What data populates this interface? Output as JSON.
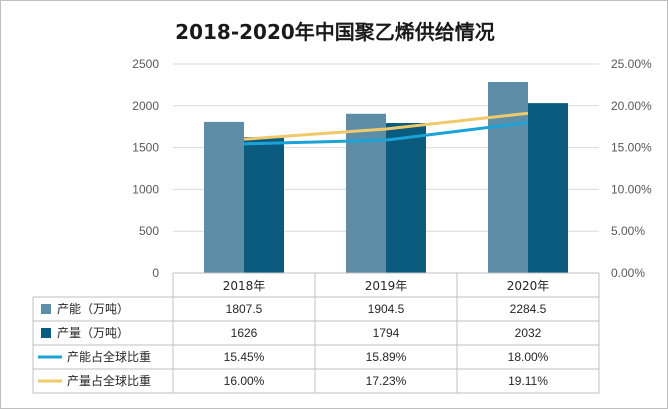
{
  "chart_data": {
    "type": "bar",
    "title": "2018-2020年中国聚乙烯供给情况",
    "categories": [
      "2018年",
      "2019年",
      "2020年"
    ],
    "series": [
      {
        "name": "产能（万吨）",
        "kind": "bar",
        "axis": "left",
        "values": [
          1807.5,
          1904.5,
          2284.5
        ],
        "labels": [
          "1807.5",
          "1904.5",
          "2284.5"
        ],
        "color": "#5e8da8"
      },
      {
        "name": "产量（万吨）",
        "kind": "bar",
        "axis": "left",
        "values": [
          1626,
          1794,
          2032
        ],
        "labels": [
          "1626",
          "1794",
          "2032"
        ],
        "color": "#0b5b7e"
      },
      {
        "name": "产能占全球比重",
        "kind": "line",
        "axis": "right",
        "values": [
          15.45,
          15.89,
          18.0
        ],
        "labels": [
          "15.45%",
          "15.89%",
          "18.00%"
        ],
        "color": "#1ba2d6"
      },
      {
        "name": "产量占全球比重",
        "kind": "line",
        "axis": "right",
        "values": [
          16.0,
          17.23,
          19.11
        ],
        "labels": [
          "16.00%",
          "17.23%",
          "19.11%"
        ],
        "color": "#f0c96a"
      }
    ],
    "ylim": [
      0,
      2500
    ],
    "y_ticks": [
      "0",
      "500",
      "1000",
      "1500",
      "2000",
      "2500"
    ],
    "y2lim": [
      0,
      25
    ],
    "y2_ticks": [
      "0.00%",
      "5.00%",
      "10.00%",
      "15.00%",
      "20.00%",
      "25.00%"
    ],
    "grid": true,
    "legend": "data-table"
  }
}
